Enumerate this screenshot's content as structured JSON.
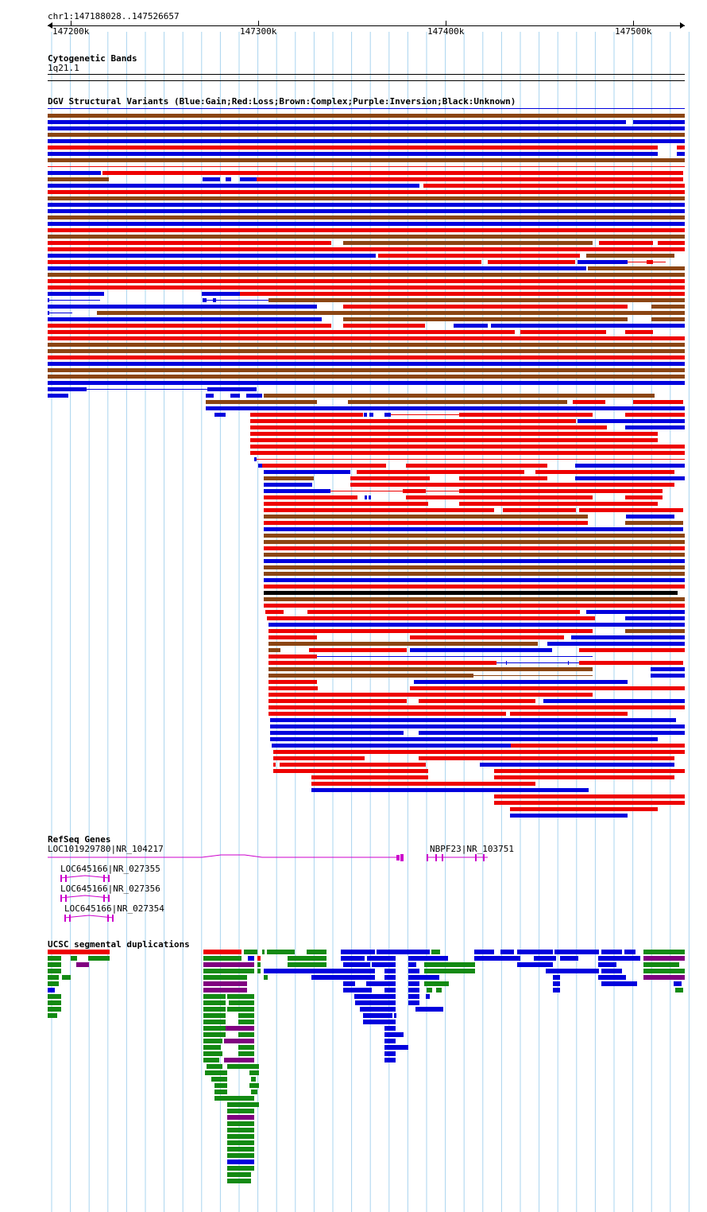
{
  "position": {
    "range": "chr1:147188028..147526657",
    "ticks": [
      "147200k",
      "147300k",
      "147400k",
      "147500k"
    ]
  },
  "cyto": {
    "title": "Cytogenetic Bands",
    "band": "1q21.1"
  },
  "dgv": {
    "title": "DGV Structural Variants (Blue:Gain;Red:Loss;Brown:Complex;Purple:Inversion;Black:Unknown)",
    "colors": {
      "gain": "#0000dd",
      "loss": "#ee0000",
      "complex": "#8b4513",
      "inversion": "#800080",
      "unknown": "#000000"
    }
  },
  "refseq": {
    "title": "RefSeq Genes",
    "genes": [
      {
        "label": "LOC101929780|NR_104217"
      },
      {
        "label": "NBPF23|NR_103751"
      },
      {
        "label": "LOC645166|NR_027355"
      },
      {
        "label": "LOC645166|NR_027356"
      },
      {
        "label": "LOC645166|NR_027354"
      }
    ],
    "color": "#cc00cc"
  },
  "segdup": {
    "title": "UCSC segmental duplications",
    "colors": {
      "green": "#138a13",
      "blue": "#0000dd",
      "red": "#ee0000",
      "purple": "#800080"
    }
  }
}
